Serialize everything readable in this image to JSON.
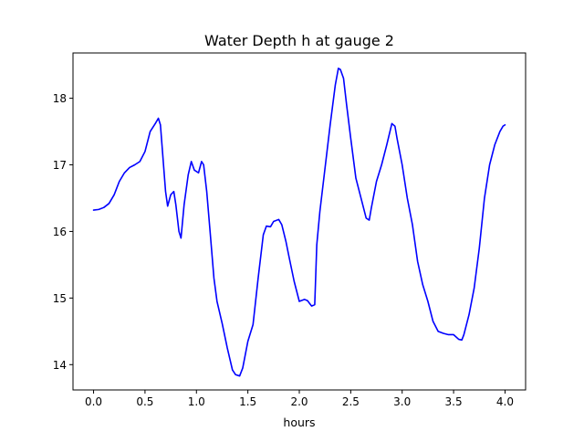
{
  "chart_data": {
    "type": "line",
    "title": "Water Depth h at gauge 2",
    "xlabel": "hours",
    "ylabel": "",
    "xlim": [
      -0.2,
      4.2
    ],
    "ylim": [
      13.62,
      18.68
    ],
    "x_ticks": [
      0.0,
      0.5,
      1.0,
      1.5,
      2.0,
      2.5,
      3.0,
      3.5,
      4.0
    ],
    "x_tick_labels": [
      "0.0",
      "0.5",
      "1.0",
      "1.5",
      "2.0",
      "2.5",
      "3.0",
      "3.5",
      "4.0"
    ],
    "y_ticks": [
      14,
      15,
      16,
      17,
      18
    ],
    "y_tick_labels": [
      "14",
      "15",
      "16",
      "17",
      "18"
    ],
    "grid": false,
    "series": [
      {
        "color": "#0000ff",
        "x": [
          0.0,
          0.05,
          0.1,
          0.15,
          0.2,
          0.25,
          0.3,
          0.35,
          0.4,
          0.45,
          0.5,
          0.55,
          0.6,
          0.63,
          0.65,
          0.67,
          0.7,
          0.72,
          0.75,
          0.78,
          0.8,
          0.83,
          0.85,
          0.88,
          0.92,
          0.95,
          0.98,
          1.02,
          1.05,
          1.07,
          1.1,
          1.13,
          1.17,
          1.2,
          1.25,
          1.3,
          1.35,
          1.38,
          1.42,
          1.45,
          1.5,
          1.55,
          1.6,
          1.65,
          1.68,
          1.72,
          1.75,
          1.8,
          1.83,
          1.87,
          1.9,
          1.95,
          2.0,
          2.05,
          2.08,
          2.1,
          2.12,
          2.15,
          2.17,
          2.2,
          2.25,
          2.3,
          2.35,
          2.38,
          2.4,
          2.43,
          2.46,
          2.5,
          2.55,
          2.6,
          2.65,
          2.68,
          2.7,
          2.75,
          2.8,
          2.85,
          2.9,
          2.93,
          2.95,
          3.0,
          3.05,
          3.1,
          3.15,
          3.2,
          3.25,
          3.3,
          3.35,
          3.4,
          3.45,
          3.5,
          3.55,
          3.58,
          3.6,
          3.65,
          3.7,
          3.75,
          3.8,
          3.85,
          3.9,
          3.95,
          3.98,
          4.0
        ],
        "y": [
          16.32,
          16.33,
          16.36,
          16.42,
          16.55,
          16.75,
          16.88,
          16.96,
          17.0,
          17.05,
          17.2,
          17.5,
          17.62,
          17.7,
          17.6,
          17.2,
          16.6,
          16.38,
          16.55,
          16.6,
          16.4,
          16.0,
          15.9,
          16.4,
          16.85,
          17.05,
          16.92,
          16.88,
          17.05,
          17.0,
          16.6,
          16.05,
          15.3,
          14.95,
          14.62,
          14.25,
          13.92,
          13.85,
          13.83,
          13.95,
          14.35,
          14.6,
          15.3,
          15.95,
          16.08,
          16.07,
          16.15,
          16.18,
          16.1,
          15.85,
          15.62,
          15.25,
          14.95,
          14.98,
          14.96,
          14.92,
          14.88,
          14.9,
          15.8,
          16.3,
          16.95,
          17.6,
          18.2,
          18.45,
          18.43,
          18.3,
          17.9,
          17.4,
          16.8,
          16.5,
          16.2,
          16.17,
          16.35,
          16.75,
          17.0,
          17.3,
          17.62,
          17.58,
          17.4,
          17.0,
          16.5,
          16.1,
          15.55,
          15.2,
          14.95,
          14.65,
          14.5,
          14.47,
          14.45,
          14.45,
          14.38,
          14.37,
          14.45,
          14.75,
          15.15,
          15.75,
          16.5,
          17.0,
          17.3,
          17.5,
          17.58,
          17.6
        ]
      }
    ]
  }
}
